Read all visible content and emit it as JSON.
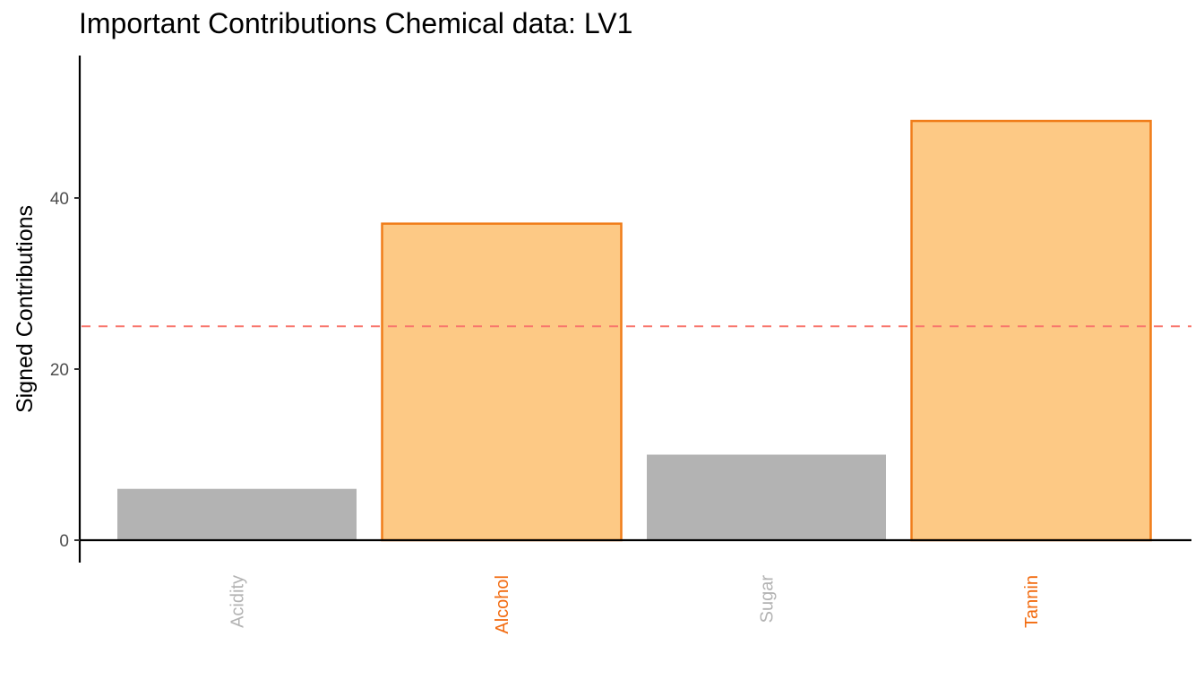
{
  "chart_data": {
    "type": "bar",
    "title": "Important Contributions Chemical data: LV1",
    "xlabel": "",
    "ylabel": "Signed Contributions",
    "categories": [
      "Acidity",
      "Alcohol",
      "Sugar",
      "Tannin"
    ],
    "values": [
      6,
      37,
      10,
      49
    ],
    "highlighted": [
      false,
      true,
      false,
      true
    ],
    "yticks": [
      0,
      20,
      40
    ],
    "ylim": [
      0,
      56
    ],
    "threshold": 25,
    "grid": false,
    "colors": {
      "highlight_fill": "#FDC985",
      "highlight_stroke": "#F07D1A",
      "highlight_label": "#F26B10",
      "muted_fill": "#B3B3B3",
      "muted_label": "#B3B3B3",
      "threshold_line": "#F8766D"
    }
  }
}
